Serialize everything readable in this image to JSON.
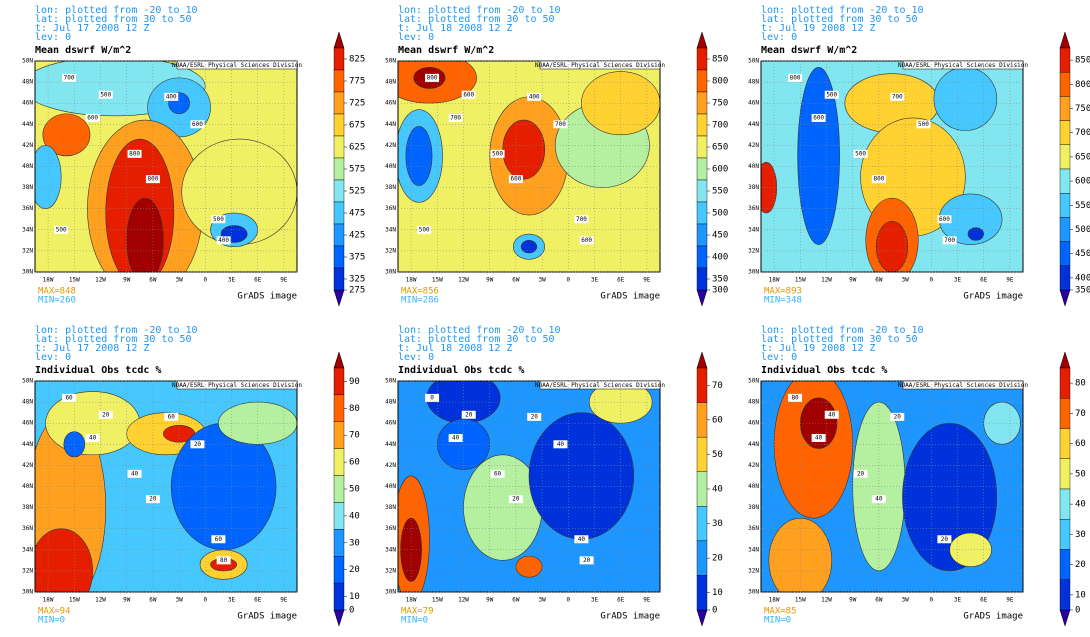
{
  "x_labels": [
    "18W",
    "15W",
    "12W",
    "9W",
    "6W",
    "3W",
    "0",
    "3E",
    "6E",
    "9E"
  ],
  "y_labels": [
    "50N",
    "48N",
    "46N",
    "44N",
    "42N",
    "40N",
    "38N",
    "36N",
    "34N",
    "32N",
    "30N"
  ],
  "credit": "NOAA/ESRL Physical Sciences Division",
  "footer": "GrADS image",
  "colormap": [
    "#2a00a0",
    "#0032dc",
    "#0064ff",
    "#1e96ff",
    "#46c8ff",
    "#82e6f0",
    "#b4f0a0",
    "#f0f064",
    "#ffd232",
    "#ffa01e",
    "#ff6400",
    "#e61e00",
    "#a00000"
  ],
  "panels": [
    {
      "lon": "lon: plotted from -20 to 10",
      "lat": "lat: plotted from 30 to 50",
      "time": "t: Jul 17 2008 12 Z",
      "lev": "lev: 0",
      "title": "Mean dswrf W/m^2",
      "max": "MAX=848",
      "min": "MIN=260",
      "colorbar_ticks": [
        825,
        775,
        725,
        675,
        625,
        575,
        525,
        475,
        425,
        375,
        325,
        275
      ],
      "contour_labels": [
        700,
        500,
        600,
        400,
        800,
        800,
        500,
        400,
        600,
        500
      ]
    },
    {
      "lon": "lon: plotted from -20 to 10",
      "lat": "lat: plotted from 30 to 50",
      "time": "t: Jul 18 2008 12 Z",
      "lev": "lev: 0",
      "title": "Mean dswrf W/m^2",
      "max": "MAX=856",
      "min": "MIN=286",
      "colorbar_ticks": [
        850,
        800,
        750,
        700,
        650,
        600,
        550,
        500,
        450,
        400,
        350,
        300
      ],
      "contour_labels": [
        800,
        600,
        700,
        400,
        500,
        600,
        700,
        600,
        700,
        500
      ]
    },
    {
      "lon": "lon: plotted from -20 to 10",
      "lat": "lat: plotted from 30 to 50",
      "time": "t: Jul 19 2008 12 Z",
      "lev": "lev: 0",
      "title": "Mean dswrf W/m^2",
      "max": "MAX=893",
      "min": "MIN=348",
      "colorbar_ticks": [
        850,
        800,
        750,
        700,
        650,
        600,
        550,
        500,
        450,
        400,
        350
      ],
      "contour_labels": [
        800,
        500,
        600,
        700,
        500,
        800,
        600,
        700,
        500
      ]
    },
    {
      "lon": "lon: plotted from -20 to 10",
      "lat": "lat: plotted from 30 to 50",
      "time": "t: Jul 17 2008 12 Z",
      "lev": "lev: 0",
      "title": "Individual Obs tcdc %",
      "max": "MAX=94",
      "min": "MIN=0",
      "colorbar_ticks": [
        90,
        80,
        70,
        60,
        50,
        40,
        30,
        20,
        10,
        0
      ],
      "contour_labels": [
        60,
        20,
        40,
        60,
        40,
        20,
        60,
        80,
        20
      ]
    },
    {
      "lon": "lon: plotted from -20 to 10",
      "lat": "lat: plotted from 30 to 50",
      "time": "t: Jul 18 2008 12 Z",
      "lev": "lev: 0",
      "title": "Individual Obs tcdc %",
      "max": "MAX=79",
      "min": "MIN=0",
      "colorbar_ticks": [
        70,
        60,
        50,
        40,
        30,
        20,
        10,
        0
      ],
      "contour_labels": [
        0,
        20,
        40,
        20,
        60,
        20,
        40,
        20,
        40
      ]
    },
    {
      "lon": "lon: plotted from -20 to 10",
      "lat": "lat: plotted from 30 to 50",
      "time": "t: Jul 19 2008 12 Z",
      "lev": "lev: 0",
      "title": "Individual Obs tcdc %",
      "max": "MAX=85",
      "min": "MIN=0",
      "colorbar_ticks": [
        80,
        70,
        60,
        50,
        40,
        30,
        20,
        10,
        0
      ],
      "contour_labels": [
        80,
        40,
        40,
        20,
        20,
        40,
        20
      ]
    }
  ]
}
